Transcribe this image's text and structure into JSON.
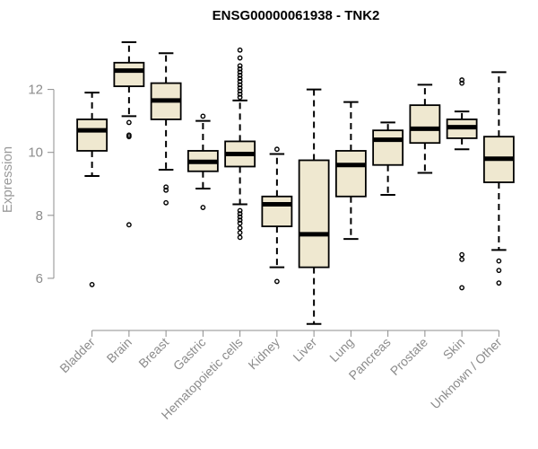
{
  "chart_data": {
    "type": "box",
    "title": "ENSG00000061938 - TNK2",
    "xlabel": "",
    "ylabel": "Expression",
    "ylim": [
      4.4,
      13.9
    ],
    "yticks": [
      6,
      8,
      10,
      12
    ],
    "box_fill": "#efe8d0",
    "box_stroke": "#000000",
    "categories": [
      "Bladder",
      "Brain",
      "Breast",
      "Gastric",
      "Hematopoietic cells",
      "Kidney",
      "Liver",
      "Lung",
      "Pancreas",
      "Prostate",
      "Skin",
      "Unknown / Other"
    ],
    "boxes": [
      {
        "category": "Bladder",
        "whisker_low": 9.25,
        "q1": 10.05,
        "median": 10.7,
        "q3": 11.05,
        "whisker_high": 11.9,
        "outliers": [
          5.8
        ]
      },
      {
        "category": "Brain",
        "whisker_low": 11.15,
        "q1": 12.1,
        "median": 12.6,
        "q3": 12.85,
        "whisker_high": 13.5,
        "outliers": [
          7.7,
          10.5,
          10.55,
          10.95
        ]
      },
      {
        "category": "Breast",
        "whisker_low": 9.45,
        "q1": 11.05,
        "median": 11.65,
        "q3": 12.2,
        "whisker_high": 13.15,
        "outliers": [
          8.4,
          8.8,
          8.9
        ]
      },
      {
        "category": "Gastric",
        "whisker_low": 8.85,
        "q1": 9.4,
        "median": 9.7,
        "q3": 10.05,
        "whisker_high": 11.0,
        "outliers": [
          8.25,
          11.15
        ]
      },
      {
        "category": "Hematopoietic cells",
        "whisker_low": 8.35,
        "q1": 9.55,
        "median": 9.95,
        "q3": 10.35,
        "whisker_high": 11.65,
        "outliers": [
          7.3,
          7.45,
          7.6,
          7.75,
          7.85,
          7.95,
          8.05,
          8.15,
          11.75,
          11.85,
          11.95,
          12.05,
          12.15,
          12.25,
          12.35,
          12.45,
          12.55,
          12.65,
          12.75,
          13.0,
          13.25
        ]
      },
      {
        "category": "Kidney",
        "whisker_low": 6.35,
        "q1": 7.65,
        "median": 8.35,
        "q3": 8.6,
        "whisker_high": 9.95,
        "outliers": [
          5.9,
          10.1
        ]
      },
      {
        "category": "Liver",
        "whisker_low": 4.55,
        "q1": 6.35,
        "median": 7.4,
        "q3": 9.75,
        "whisker_high": 12.0,
        "outliers": []
      },
      {
        "category": "Lung",
        "whisker_low": 7.25,
        "q1": 8.6,
        "median": 9.6,
        "q3": 10.05,
        "whisker_high": 11.6,
        "outliers": []
      },
      {
        "category": "Pancreas",
        "whisker_low": 8.65,
        "q1": 9.6,
        "median": 10.4,
        "q3": 10.7,
        "whisker_high": 10.95,
        "outliers": []
      },
      {
        "category": "Prostate",
        "whisker_low": 9.35,
        "q1": 10.3,
        "median": 10.75,
        "q3": 11.5,
        "whisker_high": 12.15,
        "outliers": []
      },
      {
        "category": "Skin",
        "whisker_low": 10.1,
        "q1": 10.45,
        "median": 10.8,
        "q3": 11.05,
        "whisker_high": 11.3,
        "outliers": [
          5.7,
          6.6,
          6.75,
          12.2,
          12.3
        ]
      },
      {
        "category": "Unknown / Other",
        "whisker_low": 6.9,
        "q1": 9.05,
        "median": 9.8,
        "q3": 10.5,
        "whisker_high": 12.55,
        "outliers": [
          5.85,
          6.25,
          6.55
        ]
      }
    ]
  }
}
